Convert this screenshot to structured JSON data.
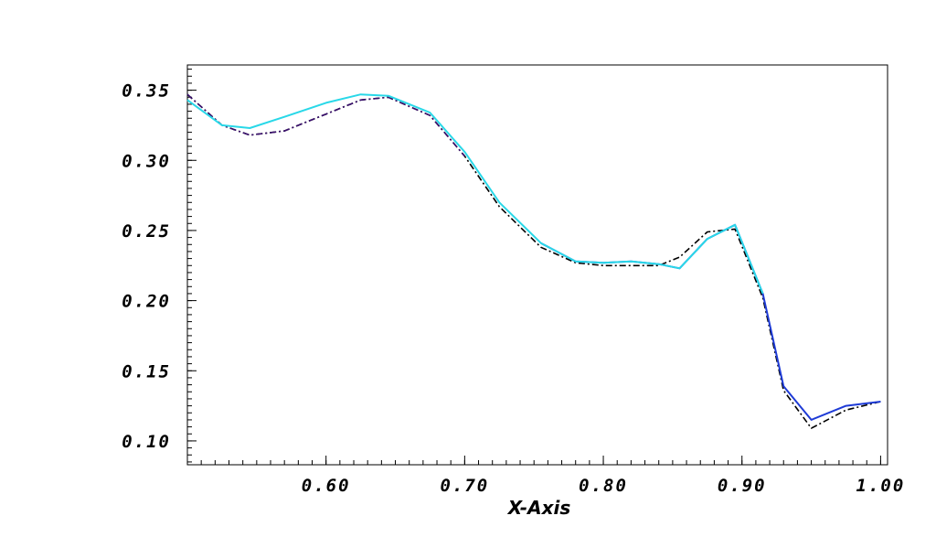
{
  "chart_data": {
    "type": "line",
    "title": "",
    "xlabel": "X-Axis",
    "ylabel": "",
    "xlim": [
      0.5,
      1.005
    ],
    "ylim": [
      0.083,
      0.368
    ],
    "grid": false,
    "legend": "none",
    "x_ticks": [
      {
        "value": 0.6,
        "label": "0.60"
      },
      {
        "value": 0.7,
        "label": "0.70"
      },
      {
        "value": 0.8,
        "label": "0.80"
      },
      {
        "value": 0.9,
        "label": "0.90"
      },
      {
        "value": 1.0,
        "label": "1.00"
      }
    ],
    "y_ticks": [
      {
        "value": 0.1,
        "label": "0.10"
      },
      {
        "value": 0.15,
        "label": "0.15"
      },
      {
        "value": 0.2,
        "label": "0.20"
      },
      {
        "value": 0.25,
        "label": "0.25"
      },
      {
        "value": 0.3,
        "label": "0.30"
      },
      {
        "value": 0.35,
        "label": "0.35"
      }
    ],
    "series": [
      {
        "color": "#000000",
        "style": "dash-dot",
        "x": [
          0.5,
          0.525,
          0.545,
          0.57,
          0.6,
          0.625,
          0.645,
          0.675,
          0.7,
          0.725,
          0.755,
          0.78,
          0.8,
          0.82,
          0.84,
          0.855,
          0.875,
          0.895,
          0.915,
          0.93,
          0.95,
          0.975,
          1.0
        ],
        "y": [
          0.347,
          0.325,
          0.318,
          0.321,
          0.333,
          0.343,
          0.345,
          0.332,
          0.303,
          0.267,
          0.238,
          0.227,
          0.225,
          0.225,
          0.225,
          0.231,
          0.249,
          0.251,
          0.202,
          0.136,
          0.109,
          0.122,
          0.128
        ]
      },
      {
        "color": "#3a0f6e",
        "style": "dash-dot",
        "x": [
          0.5,
          0.525,
          0.545,
          0.57,
          0.6,
          0.625,
          0.645,
          0.675,
          0.7
        ],
        "y": [
          0.347,
          0.325,
          0.318,
          0.321,
          0.333,
          0.343,
          0.345,
          0.332,
          0.303
        ]
      },
      {
        "color": "#1e3bd6",
        "style": "solid",
        "x": [
          0.755,
          0.78,
          0.8,
          0.82,
          0.84,
          0.855,
          0.875,
          0.895,
          0.915,
          0.93,
          0.95,
          0.975,
          1.0
        ],
        "y": [
          0.241,
          0.228,
          0.227,
          0.228,
          0.226,
          0.223,
          0.244,
          0.254,
          0.205,
          0.139,
          0.115,
          0.125,
          0.128
        ]
      },
      {
        "color": "#29d8e8",
        "style": "solid",
        "x": [
          0.5,
          0.525,
          0.545,
          0.57,
          0.6,
          0.625,
          0.645,
          0.675,
          0.7,
          0.725,
          0.755,
          0.78,
          0.8,
          0.82,
          0.84,
          0.855,
          0.875,
          0.895,
          0.915
        ],
        "y": [
          0.343,
          0.325,
          0.323,
          0.331,
          0.341,
          0.347,
          0.346,
          0.334,
          0.306,
          0.27,
          0.241,
          0.228,
          0.227,
          0.228,
          0.226,
          0.223,
          0.244,
          0.254,
          0.205
        ]
      }
    ]
  }
}
